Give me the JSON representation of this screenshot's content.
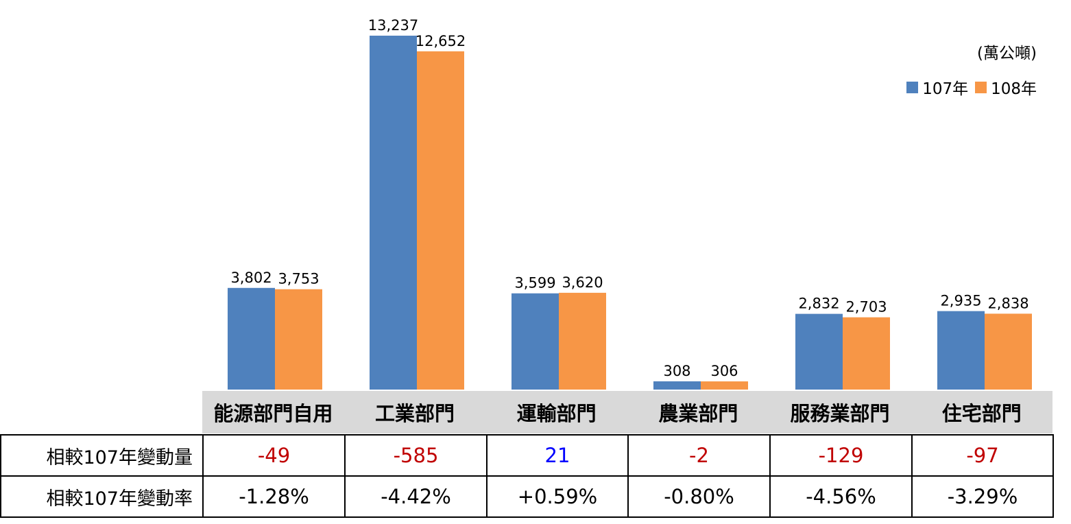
{
  "chart_data": {
    "type": "bar",
    "unit": "(萬公噸)",
    "categories": [
      "能源部門自用",
      "工業部門",
      "運輸部門",
      "農業部門",
      "服務業部門",
      "住宅部門"
    ],
    "series": [
      {
        "name": "107年",
        "color": "#4f81bd",
        "values": [
          3802,
          13237,
          3599,
          308,
          2832,
          2935
        ],
        "labels": [
          "3,802",
          "13,237",
          "3,599",
          "308",
          "2,832",
          "2,935"
        ]
      },
      {
        "name": "108年",
        "color": "#f79646",
        "values": [
          3753,
          12652,
          3620,
          306,
          2703,
          2838
        ],
        "labels": [
          "3,753",
          "12,652",
          "3,620",
          "306",
          "2,703",
          "2,838"
        ]
      }
    ],
    "ylim": [
      0,
      13237
    ],
    "legend_position": "top-right",
    "grid": false
  },
  "table": {
    "row_change_label": "相較107年變動量",
    "row_rate_label": "相較107年變動率",
    "changes": [
      "-49",
      "-585",
      "21",
      "-2",
      "-129",
      "-97"
    ],
    "change_signs": [
      "neg",
      "neg",
      "pos",
      "neg",
      "neg",
      "neg"
    ],
    "rates": [
      "-1.28%",
      "-4.42%",
      "+0.59%",
      "-0.80%",
      "-4.56%",
      "-3.29%"
    ]
  }
}
